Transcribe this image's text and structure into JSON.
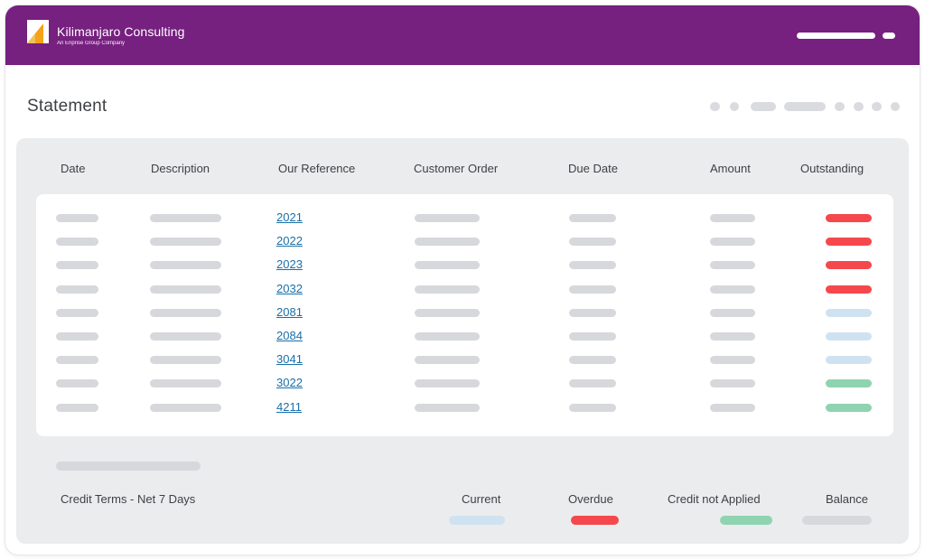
{
  "header": {
    "brand_name": "Kilimanjaro Consulting",
    "brand_sub": "An Enprise Group Company"
  },
  "page": {
    "title": "Statement"
  },
  "colors": {
    "header_bg": "#76207f",
    "overdue": "#f5484c",
    "current": "#cfe2f1",
    "credit": "#8fd3b1",
    "placeholder": "#d7d8dc",
    "link": "#1a6fa8"
  },
  "table": {
    "columns": [
      "Date",
      "Description",
      "Our Reference",
      "Customer Order",
      "Due Date",
      "Amount",
      "Outstanding"
    ],
    "rows": [
      {
        "reference": "2021",
        "status": "overdue"
      },
      {
        "reference": "2022",
        "status": "overdue"
      },
      {
        "reference": "2023",
        "status": "overdue"
      },
      {
        "reference": "2032",
        "status": "overdue"
      },
      {
        "reference": "2081",
        "status": "current"
      },
      {
        "reference": "2084",
        "status": "current"
      },
      {
        "reference": "3041",
        "status": "current"
      },
      {
        "reference": "3022",
        "status": "credit"
      },
      {
        "reference": "4211",
        "status": "credit"
      }
    ]
  },
  "summary": {
    "credit_terms": "Credit Terms - Net 7 Days",
    "current_label": "Current",
    "overdue_label": "Overdue",
    "credit_label": "Credit not Applied",
    "balance_label": "Balance"
  }
}
